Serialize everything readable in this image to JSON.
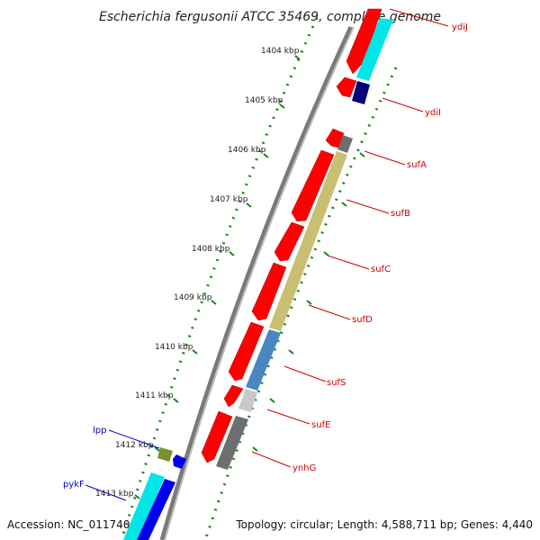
{
  "title": "Escherichia fergusonii ATCC 35469, complete genome",
  "footer": {
    "accession": "Accession: NC_011740",
    "topology": "Topology: circular; Length: 4,588,711 bp; Genes: 4,440"
  },
  "ticks": [
    "1404 kbp",
    "1405 kbp",
    "1406 kbp",
    "1407 kbp",
    "1408 kbp",
    "1409 kbp",
    "1410 kbp",
    "1411 kbp",
    "1412 kbp",
    "1413 kbp"
  ],
  "gene_labels": [
    {
      "name": "ydiJ",
      "color": "#cc0000"
    },
    {
      "name": "ydiI",
      "color": "#cc0000"
    },
    {
      "name": "sufA",
      "color": "#cc0000"
    },
    {
      "name": "sufB",
      "color": "#cc0000"
    },
    {
      "name": "sufC",
      "color": "#cc0000"
    },
    {
      "name": "sufD",
      "color": "#cc0000"
    },
    {
      "name": "sufS",
      "color": "#cc0000"
    },
    {
      "name": "sufE",
      "color": "#cc0000"
    },
    {
      "name": "ynhG",
      "color": "#cc0000"
    },
    {
      "name": "lpp",
      "color": "#0000cc"
    },
    {
      "name": "pykF",
      "color": "#0000cc"
    }
  ],
  "colors": {
    "cds_forward": "#ff0000",
    "cyan_feature": "#00e5e5",
    "olive_feature": "#c8bf72",
    "steel_feature": "#4a86c0",
    "grey_feature": "#6e6e6e",
    "light_grey_feature": "#c8c8c8",
    "navy_feature": "#00007a",
    "blue_feature": "#0000ee",
    "tick_green": "#118811"
  }
}
